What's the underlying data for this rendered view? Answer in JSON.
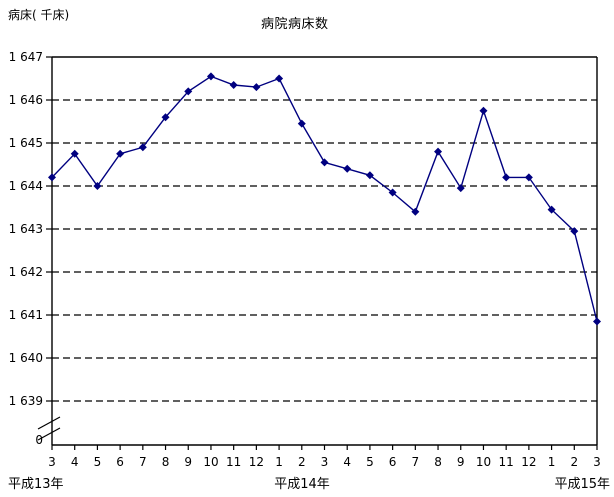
{
  "chart_data": {
    "type": "line",
    "title": "病院病床数",
    "ylabel": "病床( 千床)",
    "legend": "none",
    "grid": "horizontal-dashed",
    "axis_break_above_zero": true,
    "ylim_main": [
      1639,
      1647
    ],
    "y_tick_labels": [
      "1 647",
      "1 646",
      "1 645",
      "1 644",
      "1 643",
      "1 642",
      "1 641",
      "1 640",
      "1 639"
    ],
    "y_tick_values": [
      1647,
      1646,
      1645,
      1644,
      1643,
      1642,
      1641,
      1640,
      1639
    ],
    "y_zero_label": "0",
    "x_labels": [
      "3",
      "4",
      "5",
      "6",
      "7",
      "8",
      "9",
      "10",
      "11",
      "12",
      "1",
      "2",
      "3",
      "4",
      "5",
      "6",
      "7",
      "8",
      "9",
      "10",
      "11",
      "12",
      "1",
      "2",
      "3"
    ],
    "era_labels": [
      {
        "text": "平成13年",
        "anchor": "left"
      },
      {
        "text": "平成14年",
        "anchor": "center"
      },
      {
        "text": "平成15年",
        "anchor": "right"
      }
    ],
    "series": [
      {
        "name": "病院病床数",
        "values": [
          1644.2,
          1644.75,
          1644.0,
          1644.75,
          1644.9,
          1645.6,
          1646.2,
          1646.55,
          1646.35,
          1646.3,
          1646.5,
          1645.45,
          1644.55,
          1644.4,
          1644.25,
          1643.85,
          1643.4,
          1644.8,
          1643.95,
          1645.75,
          1644.2,
          1644.2,
          1643.45,
          1642.95,
          1640.85
        ]
      }
    ],
    "line_color": "#000080",
    "marker": "diamond",
    "axis_color": "#000000",
    "background_color": "#ffffff"
  }
}
